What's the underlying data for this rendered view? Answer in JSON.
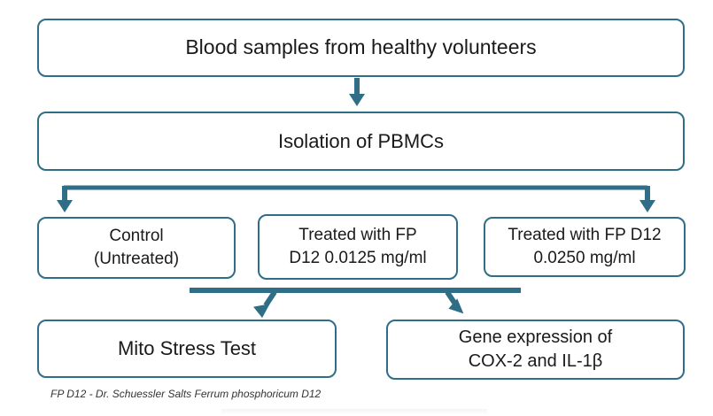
{
  "nodes": {
    "blood": {
      "label": "Blood samples from healthy volunteers"
    },
    "isolation": {
      "label": "Isolation of PBMCs"
    },
    "control": {
      "line1": "Control",
      "line2": "(Untreated)"
    },
    "treated_low": {
      "line1": "Treated with FP",
      "line2": "D12 0.0125 mg/ml"
    },
    "treated_high": {
      "line1": "Treated with FP D12",
      "line2": "0.0250 mg/ml"
    },
    "mito": {
      "label": "Mito Stress Test"
    },
    "gene": {
      "line1": "Gene expression of",
      "line2": "COX-2 and IL-1β"
    }
  },
  "footnote": "FP D12 - Dr. Schuessler Salts Ferrum phosphoricum D12",
  "colors": {
    "border": "#2f6e86",
    "arrow": "#2f6e86",
    "text": "#1a1a1a"
  }
}
